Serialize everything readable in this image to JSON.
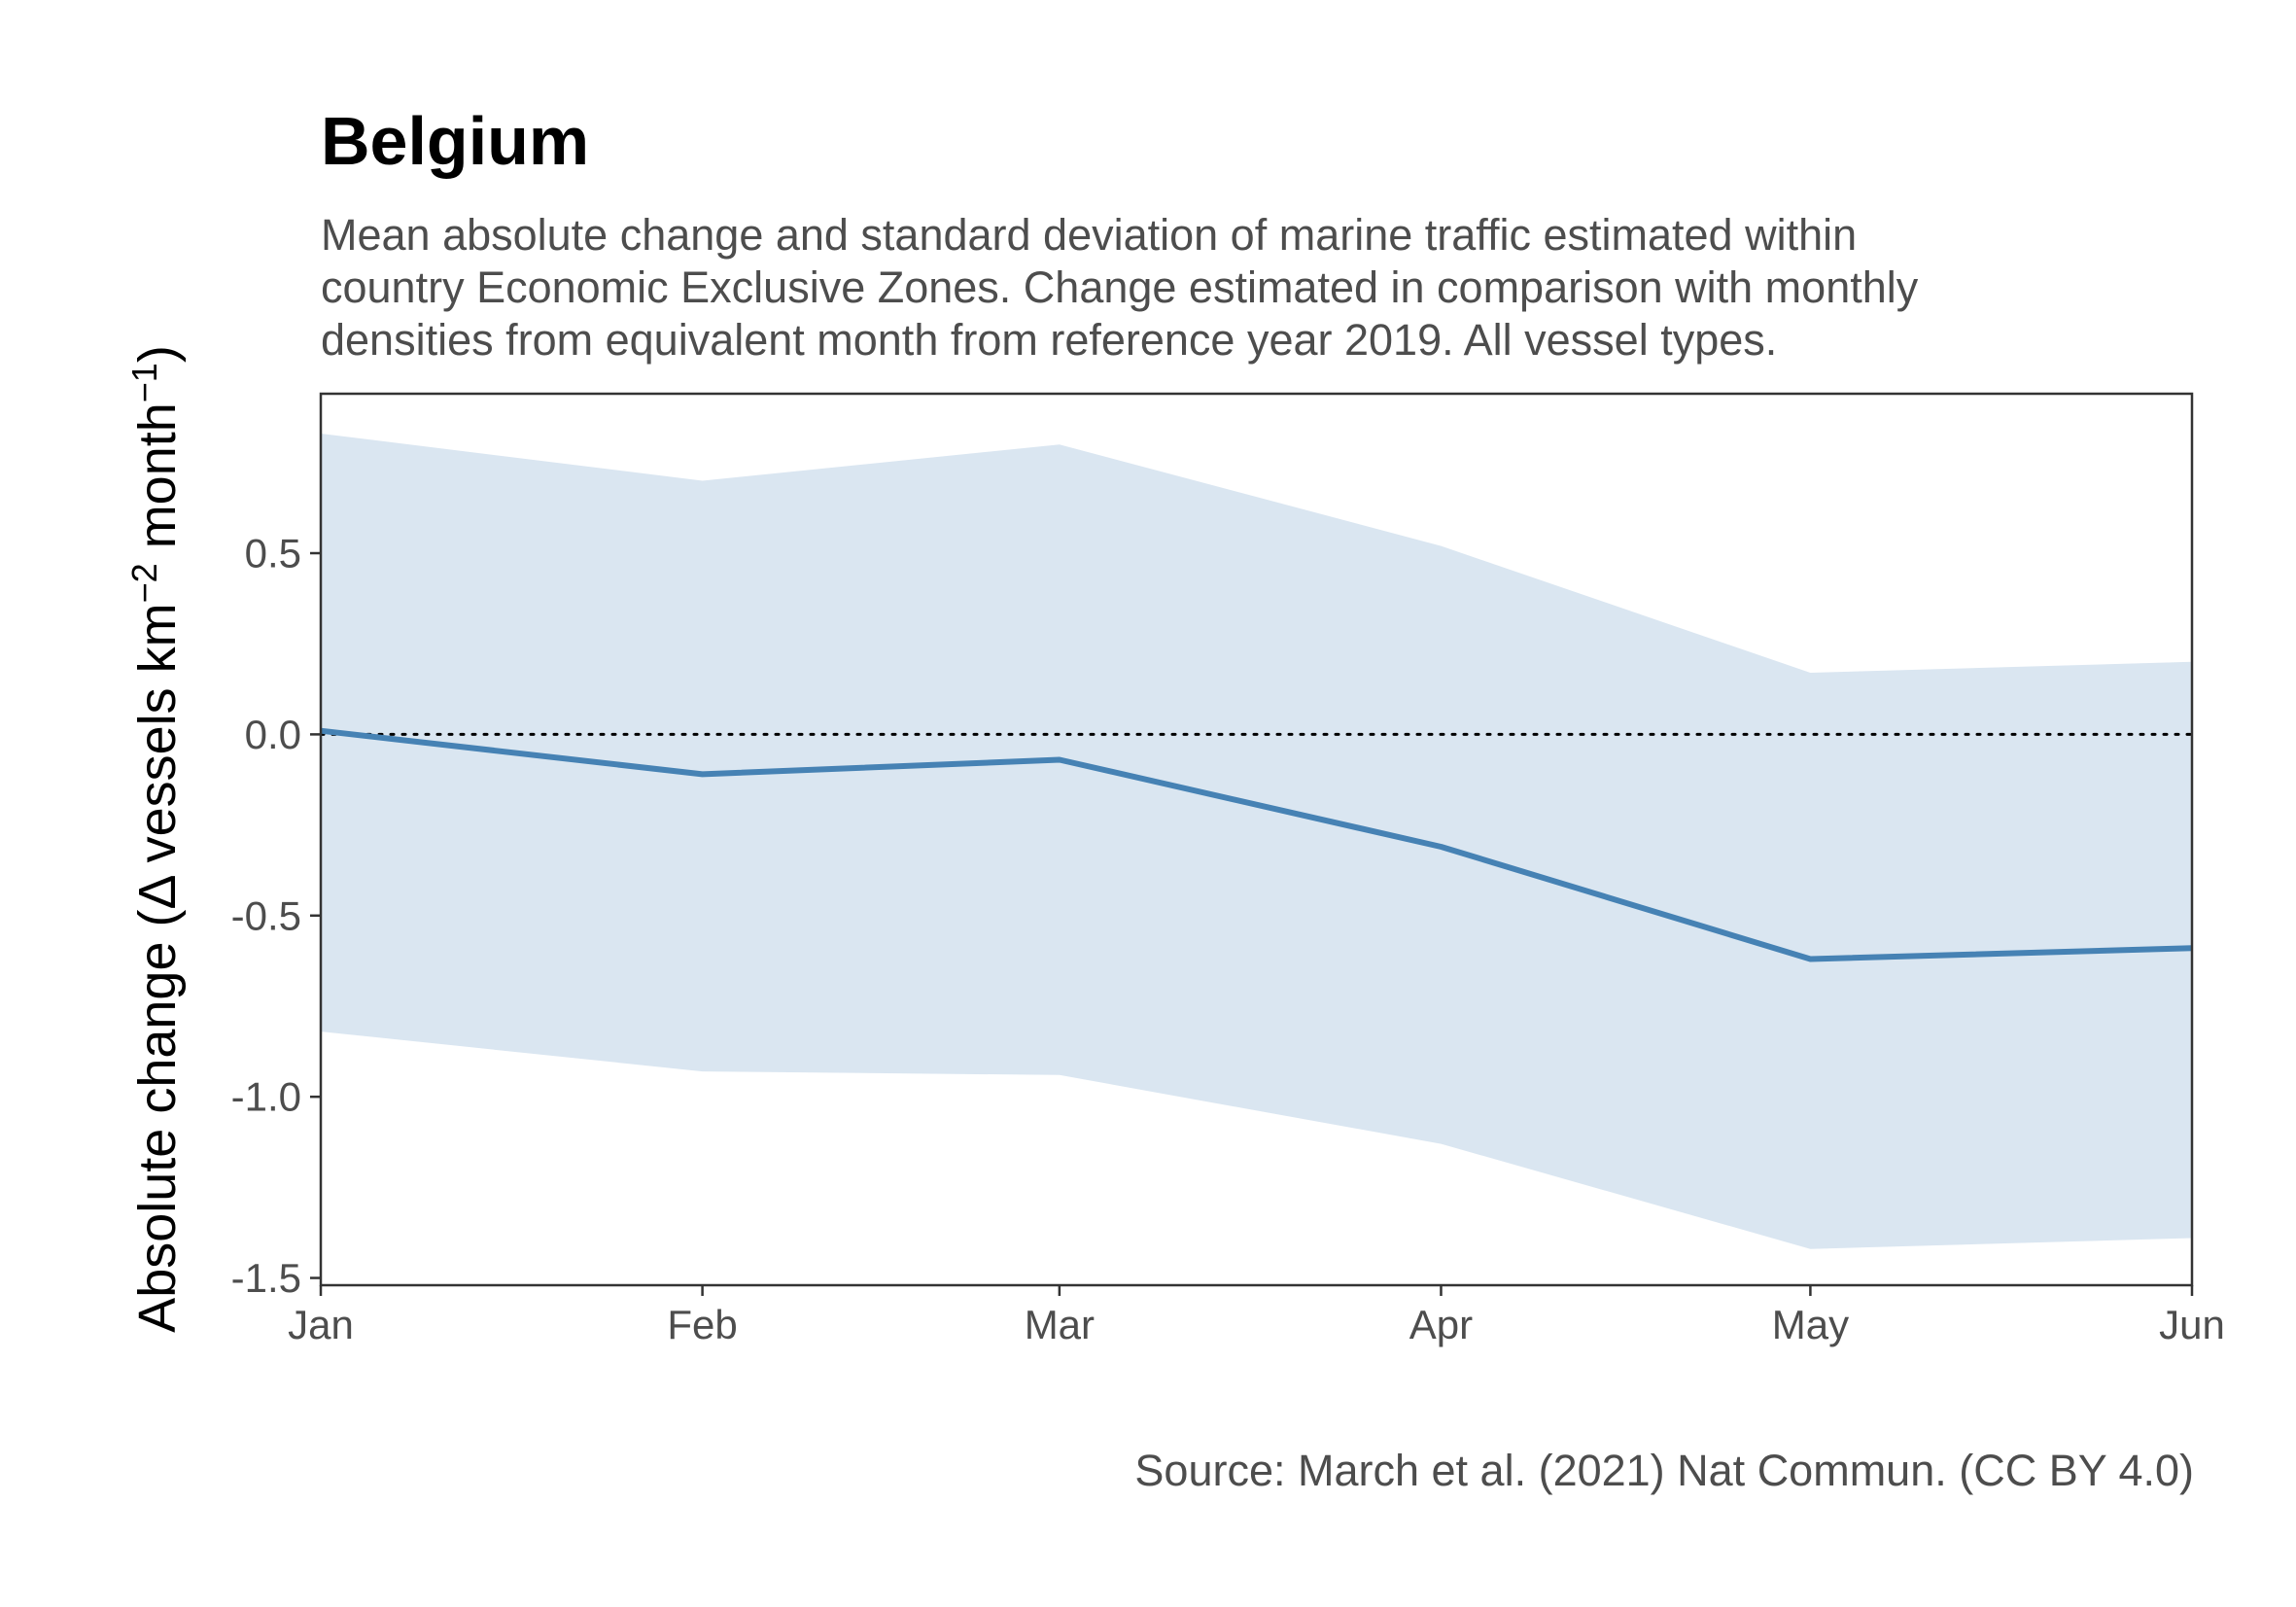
{
  "chart_data": {
    "type": "line",
    "title": "Belgium",
    "subtitle_lines": [
      "Mean absolute change and standard deviation of marine traffic estimated within",
      "country Economic Exclusive Zones. Change estimated in comparison with monthly",
      "densities from equivalent month from reference year 2019. All vessel types."
    ],
    "caption": "Source: March et al. (2021) Nat Commun. (CC BY 4.0)",
    "ylabel": {
      "prefix": "Absolute change (",
      "delta": "Δ",
      "text1": " vessels km",
      "sup1": "−2",
      "text2": " month",
      "sup2": "−1",
      "suffix": ")"
    },
    "x": [
      "2020-01-01",
      "2020-02-01",
      "2020-03-01",
      "2020-04-01",
      "2020-05-01",
      "2020-06-01"
    ],
    "x_tick_labels": [
      "Jan",
      "Feb",
      "Mar",
      "Apr",
      "May",
      "Jun"
    ],
    "xlim": [
      "2020-01-01",
      "2020-06-01"
    ],
    "ylim": [
      -1.52,
      0.94
    ],
    "y_ticks": [
      0.5,
      0.0,
      -0.5,
      -1.0,
      -1.5
    ],
    "y_tick_labels": [
      "0.5",
      "0.0",
      "-0.5",
      "-1.0",
      "-1.5"
    ],
    "reference_line": {
      "y": 0,
      "style": "dotted",
      "color": "#000000"
    },
    "series": [
      {
        "type": "line",
        "color": "#4682b4",
        "values": [
          0.01,
          -0.11,
          -0.07,
          -0.31,
          -0.62,
          -0.59
        ]
      },
      {
        "type": "ribbon",
        "color": "#dae6f1",
        "lower": [
          -0.82,
          -0.93,
          -0.94,
          -1.13,
          -1.42,
          -1.39
        ],
        "upper": [
          0.83,
          0.7,
          0.8,
          0.52,
          0.17,
          0.2
        ]
      }
    ],
    "grid": false,
    "legend": "none"
  }
}
